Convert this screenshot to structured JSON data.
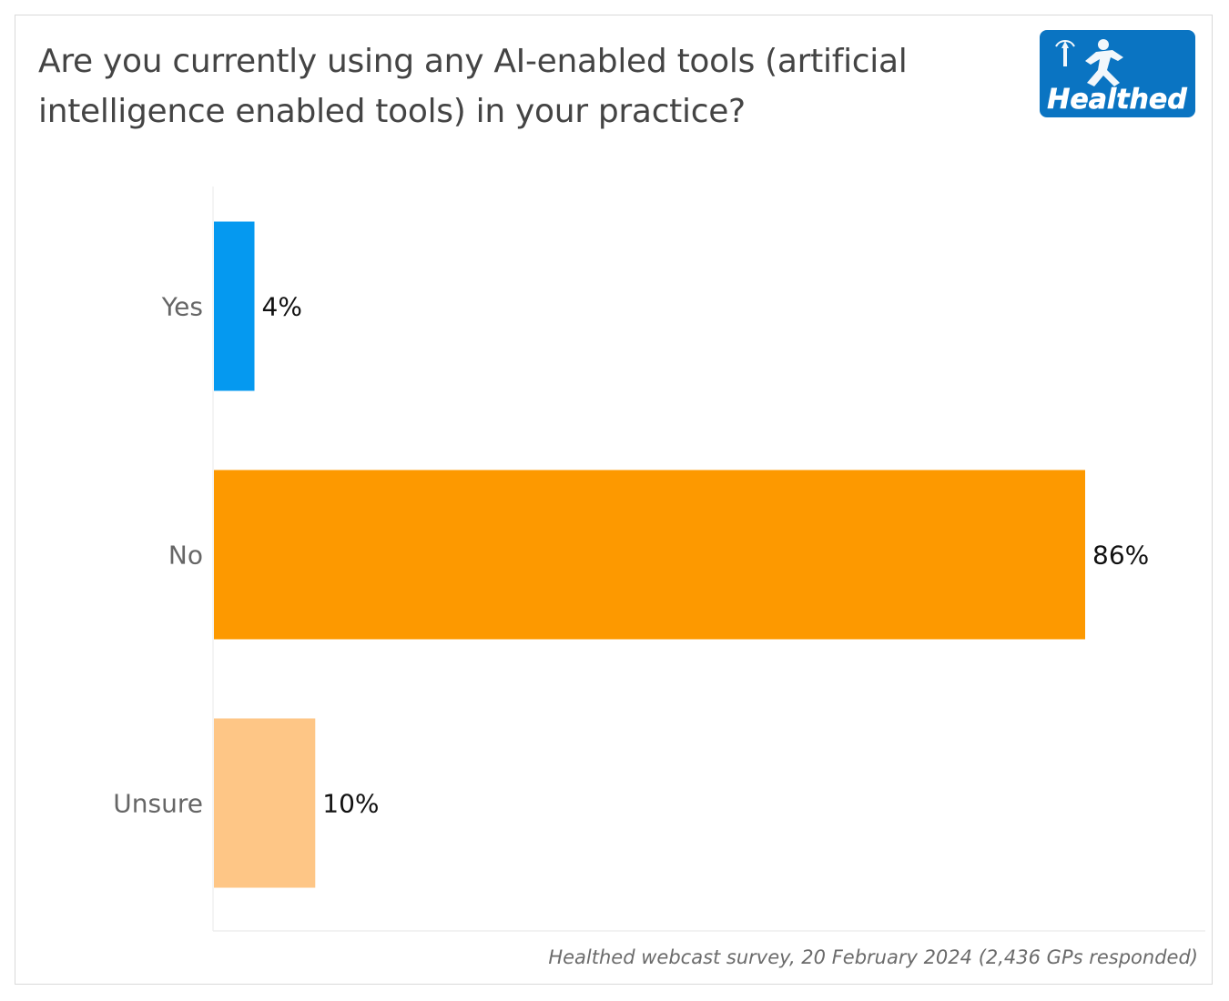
{
  "title": "Are you currently using any AI-enabled tools (artificial intelligence enabled tools) in your practice?",
  "logo": {
    "text": "Healthed",
    "icon": "hermes-runner-icon",
    "background": "#0a74c2"
  },
  "footer": "Healthed webcast survey, 20 February 2024 (2,436 GPs responded)",
  "chart_data": {
    "type": "bar",
    "orientation": "horizontal",
    "categories": [
      "Yes",
      "No",
      "Unsure"
    ],
    "values": [
      4,
      86,
      10
    ],
    "value_labels": [
      "4%",
      "86%",
      "10%"
    ],
    "colors": [
      "#0599f0",
      "#fd9900",
      "#fec686"
    ],
    "xlim": [
      0,
      100
    ],
    "grid": false,
    "legend": "none"
  }
}
